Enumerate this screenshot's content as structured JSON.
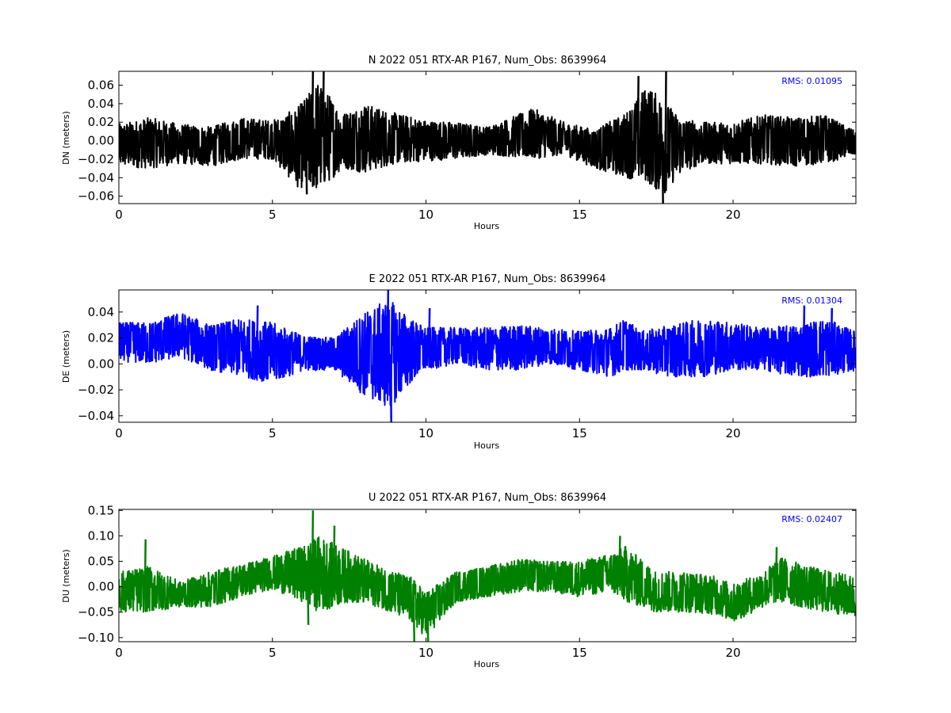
{
  "chart_data": [
    {
      "type": "line",
      "title": "N 2022 051 RTX-AR  P167, Num_Obs: 8639964",
      "xlabel": "Hours",
      "ylabel": "DN (meters)",
      "xlim": [
        0,
        24
      ],
      "ylim": [
        -0.068,
        0.075
      ],
      "xticks": [
        0,
        5,
        10,
        15,
        20
      ],
      "xtick_labels": [
        "0",
        "5",
        "10",
        "15",
        "20"
      ],
      "yticks": [
        -0.06,
        -0.04,
        -0.02,
        0.0,
        0.02,
        0.04,
        0.06
      ],
      "ytick_labels": [
        "−0.06",
        "−0.04",
        "−0.02",
        "0.00",
        "0.02",
        "0.04",
        "0.06"
      ],
      "color": "#000000",
      "annotation": "RMS:  0.01095",
      "annotation_color": "#0000ff",
      "envelope": {
        "hours": [
          0,
          1,
          2,
          3,
          4,
          5,
          5.8,
          6.5,
          7.3,
          8,
          9,
          10,
          11,
          12,
          13.5,
          14.5,
          15.5,
          16.5,
          17.2,
          17.7,
          18.3,
          19,
          20,
          21,
          22,
          23,
          24
        ],
        "upper": [
          0.018,
          0.025,
          0.018,
          0.015,
          0.025,
          0.022,
          0.035,
          0.065,
          0.03,
          0.04,
          0.03,
          0.022,
          0.02,
          0.015,
          0.035,
          0.02,
          0.012,
          0.03,
          0.06,
          0.045,
          0.025,
          0.02,
          0.02,
          0.028,
          0.025,
          0.028,
          0.01
        ],
        "lower": [
          -0.028,
          -0.03,
          -0.025,
          -0.028,
          -0.02,
          -0.02,
          -0.05,
          -0.055,
          -0.03,
          -0.035,
          -0.025,
          -0.022,
          -0.02,
          -0.015,
          -0.02,
          -0.015,
          -0.03,
          -0.04,
          -0.045,
          -0.06,
          -0.035,
          -0.025,
          -0.025,
          -0.025,
          -0.028,
          -0.025,
          -0.015
        ],
        "spikes": [
          [
            6.3,
            0.075
          ],
          [
            6.65,
            0.075
          ],
          [
            17.7,
            -0.068
          ],
          [
            17.8,
            0.075
          ],
          [
            16.9,
            0.07
          ],
          [
            6.1,
            -0.058
          ]
        ]
      }
    },
    {
      "type": "line",
      "title": "E 2022 051 RTX-AR  P167, Num_Obs: 8639964",
      "xlabel": "Hours",
      "ylabel": "DE (meters)",
      "xlim": [
        0,
        24
      ],
      "ylim": [
        -0.045,
        0.057
      ],
      "xticks": [
        0,
        5,
        10,
        15,
        20
      ],
      "xtick_labels": [
        "0",
        "5",
        "10",
        "15",
        "20"
      ],
      "yticks": [
        -0.04,
        -0.02,
        0.0,
        0.02,
        0.04
      ],
      "ytick_labels": [
        "−0.04",
        "−0.02",
        "0.00",
        "0.02",
        "0.04"
      ],
      "color": "#0000ff",
      "annotation": "RMS:  0.01304",
      "annotation_color": "#0000ff",
      "envelope": {
        "hours": [
          0,
          1,
          2,
          3,
          4,
          5,
          6,
          7,
          8,
          8.8,
          9.5,
          10,
          11,
          12,
          13,
          14,
          15,
          16,
          16.5,
          17,
          18,
          19,
          20,
          21,
          22,
          23,
          24
        ],
        "upper": [
          0.032,
          0.032,
          0.04,
          0.03,
          0.035,
          0.032,
          0.022,
          0.02,
          0.04,
          0.05,
          0.035,
          0.028,
          0.028,
          0.028,
          0.03,
          0.028,
          0.025,
          0.028,
          0.035,
          0.025,
          0.03,
          0.035,
          0.032,
          0.028,
          0.03,
          0.035,
          0.025
        ],
        "lower": [
          0.002,
          0.0,
          0.005,
          -0.005,
          -0.01,
          -0.015,
          -0.005,
          -0.005,
          -0.025,
          -0.035,
          -0.015,
          -0.005,
          0.0,
          -0.005,
          -0.005,
          0.0,
          -0.005,
          -0.01,
          -0.005,
          -0.005,
          -0.01,
          -0.01,
          -0.005,
          -0.005,
          -0.01,
          -0.01,
          -0.005
        ],
        "spikes": [
          [
            8.75,
            0.057
          ],
          [
            8.85,
            -0.045
          ],
          [
            22.3,
            0.045
          ],
          [
            23.2,
            0.043
          ],
          [
            4.5,
            0.045
          ],
          [
            10.1,
            0.043
          ]
        ]
      }
    },
    {
      "type": "line",
      "title": "U 2022 051 RTX-AR  P167, Num_Obs: 8639964",
      "xlabel": "Hours",
      "ylabel": "DU (meters)",
      "xlim": [
        0,
        24
      ],
      "ylim": [
        -0.108,
        0.152
      ],
      "xticks": [
        0,
        5,
        10,
        15,
        20
      ],
      "xtick_labels": [
        "0",
        "5",
        "10",
        "15",
        "20"
      ],
      "yticks": [
        -0.1,
        -0.05,
        0.0,
        0.05,
        0.1,
        0.15
      ],
      "ytick_labels": [
        "−0.10",
        "−0.05",
        "0.00",
        "0.05",
        "0.10",
        "0.15"
      ],
      "color": "#008000",
      "annotation": "RMS:  0.02407",
      "annotation_color": "#0000ff",
      "envelope": {
        "hours": [
          0,
          1,
          2,
          3,
          4,
          5,
          6,
          6.5,
          7.5,
          8.5,
          9.5,
          10,
          11,
          12,
          13,
          14,
          15,
          16,
          16.5,
          17.5,
          18.5,
          19.5,
          20,
          21,
          21.5,
          22.5,
          24
        ],
        "upper": [
          0.03,
          0.04,
          0.01,
          0.03,
          0.045,
          0.06,
          0.08,
          0.1,
          0.07,
          0.04,
          0.02,
          -0.01,
          0.03,
          0.04,
          0.055,
          0.05,
          0.05,
          0.065,
          0.08,
          0.03,
          0.03,
          0.02,
          0.005,
          0.03,
          0.06,
          0.04,
          0.02
        ],
        "lower": [
          -0.05,
          -0.05,
          -0.04,
          -0.04,
          -0.02,
          -0.005,
          -0.03,
          -0.05,
          -0.03,
          -0.04,
          -0.07,
          -0.1,
          -0.03,
          -0.02,
          -0.01,
          -0.01,
          -0.02,
          -0.01,
          -0.03,
          -0.05,
          -0.05,
          -0.055,
          -0.07,
          -0.04,
          -0.03,
          -0.045,
          -0.06
        ],
        "spikes": [
          [
            0.85,
            0.093
          ],
          [
            6.3,
            0.15
          ],
          [
            7.0,
            0.12
          ],
          [
            9.6,
            -0.108
          ],
          [
            10.05,
            -0.108
          ],
          [
            16.3,
            0.1
          ],
          [
            21.4,
            0.078
          ],
          [
            6.15,
            -0.075
          ]
        ]
      }
    }
  ]
}
